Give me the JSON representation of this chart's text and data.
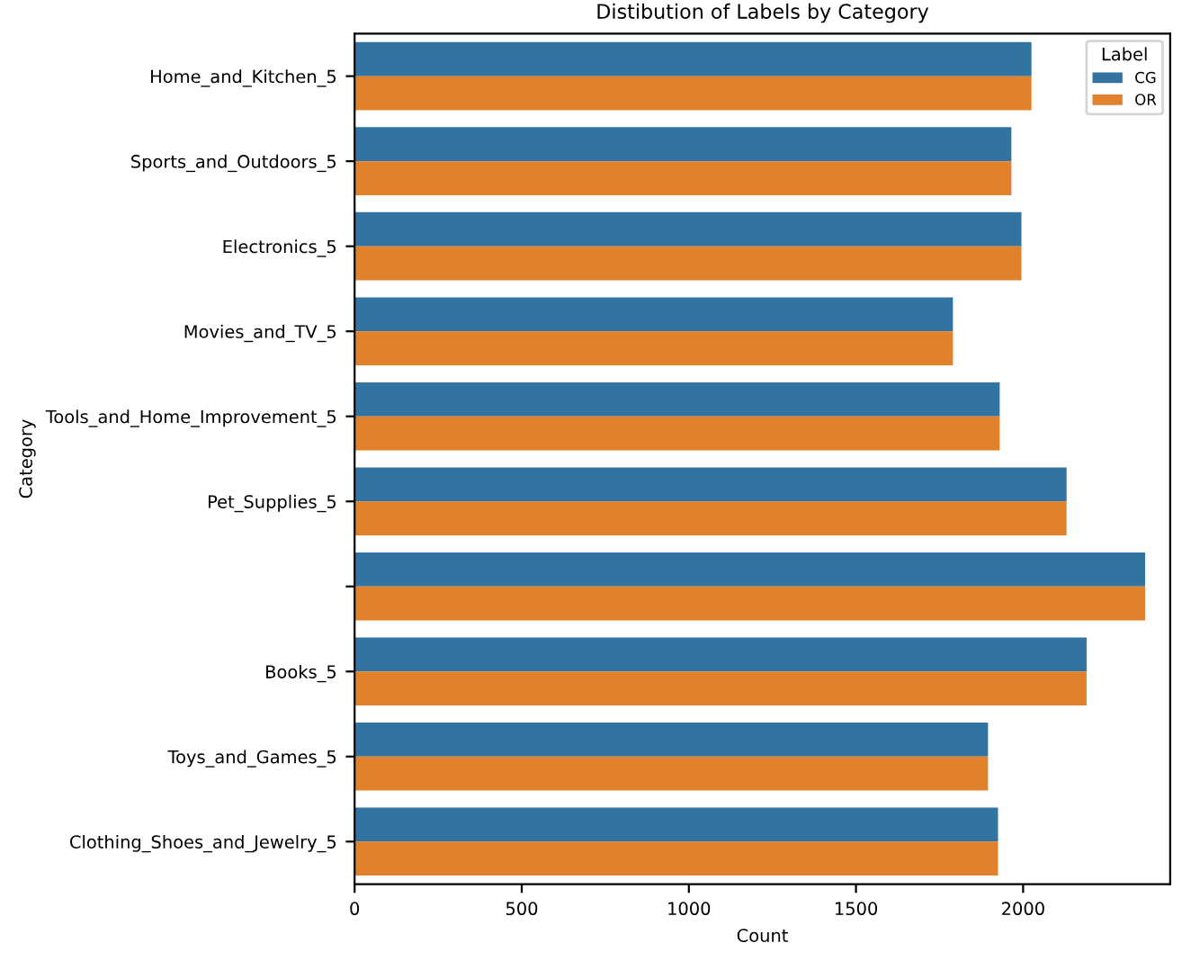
{
  "chart_data": {
    "type": "bar",
    "orientation": "horizontal",
    "title": "Distibution of Labels by Category",
    "xlabel": "Count",
    "ylabel": "Category",
    "legend_title": "Label",
    "legend": "top right",
    "categories": [
      "Home_and_Kitchen_5",
      "Sports_and_Outdoors_5",
      "Electronics_5",
      "Movies_and_TV_5",
      "Tools_and_Home_Improvement_5",
      "Pet_Supplies_5",
      null,
      "Books_5",
      "Toys_and_Games_5",
      "Clothing_Shoes_and_Jewelry_5"
    ],
    "series": [
      {
        "name": "CG",
        "color": "#3274a1",
        "values": [
          2025,
          1965,
          1995,
          1790,
          1930,
          2130,
          2365,
          2190,
          1895,
          1925
        ]
      },
      {
        "name": "OR",
        "color": "#e1812c",
        "values": [
          2025,
          1965,
          1995,
          1790,
          1930,
          2130,
          2365,
          2190,
          1895,
          1925
        ]
      }
    ],
    "xlim": [
      0,
      2440
    ],
    "xticks": [
      0,
      500,
      1000,
      1500,
      2000
    ]
  }
}
